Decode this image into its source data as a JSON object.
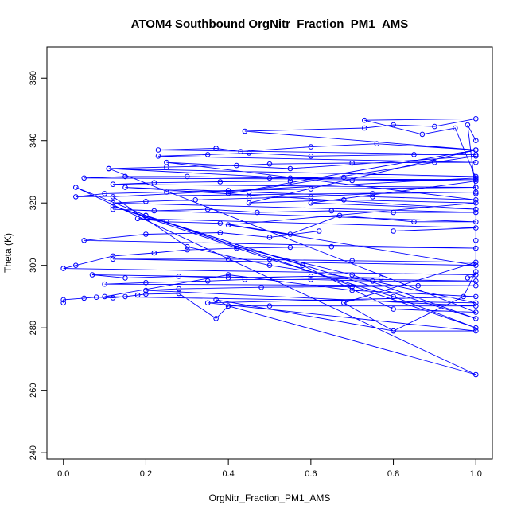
{
  "chart_data": {
    "type": "scatter",
    "title": "ATOM4 Southbound OrgNitr_Fraction_PM1_AMS",
    "xlabel": "OrgNitr_Fraction_PM1_AMS",
    "ylabel": "Theta (K)",
    "xlim": [
      -0.04,
      1.04
    ],
    "ylim": [
      238,
      370
    ],
    "xticks": [
      0.0,
      0.2,
      0.4,
      0.6,
      0.8,
      1.0
    ],
    "xtick_labels": [
      "0.0",
      "0.2",
      "0.4",
      "0.6",
      "0.8",
      "1.0"
    ],
    "yticks": [
      240,
      260,
      280,
      300,
      320,
      340,
      360
    ],
    "ytick_labels": [
      "240",
      "260",
      "280",
      "300",
      "320",
      "340",
      "360"
    ],
    "grid": false,
    "color": "#0000ff",
    "series": [
      {
        "name": "Southbound",
        "connected": true,
        "points": [
          [
            0.0,
            288.0
          ],
          [
            0.0,
            289.0
          ],
          [
            0.05,
            289.5
          ],
          [
            0.08,
            289.8
          ],
          [
            0.12,
            289.6
          ],
          [
            0.15,
            290.0
          ],
          [
            0.18,
            290.5
          ],
          [
            0.2,
            290.8
          ],
          [
            0.28,
            291.0
          ],
          [
            0.37,
            283.0
          ],
          [
            0.4,
            287.0
          ],
          [
            0.5,
            287.0
          ],
          [
            1.0,
            287.0
          ],
          [
            0.2,
            292.0
          ],
          [
            0.28,
            292.5
          ],
          [
            0.48,
            293.0
          ],
          [
            0.7,
            293.2
          ],
          [
            0.86,
            293.5
          ],
          [
            1.0,
            293.5
          ],
          [
            0.1,
            294.0
          ],
          [
            0.2,
            294.5
          ],
          [
            0.35,
            295.0
          ],
          [
            0.44,
            295.5
          ],
          [
            0.6,
            295.5
          ],
          [
            0.75,
            295.0
          ],
          [
            1.0,
            295.0
          ],
          [
            0.07,
            297.0
          ],
          [
            0.15,
            296.0
          ],
          [
            0.28,
            296.5
          ],
          [
            0.4,
            296.0
          ],
          [
            0.6,
            296.5
          ],
          [
            0.77,
            296.0
          ],
          [
            0.98,
            296.0
          ],
          [
            1.0,
            297.0
          ],
          [
            0.0,
            299.0
          ],
          [
            0.03,
            300.0
          ],
          [
            0.12,
            303.0
          ],
          [
            0.22,
            304.0
          ],
          [
            0.3,
            305.0
          ],
          [
            0.42,
            305.5
          ],
          [
            0.55,
            305.8
          ],
          [
            0.65,
            306.0
          ],
          [
            1.0,
            305.5
          ],
          [
            0.05,
            308.0
          ],
          [
            0.2,
            310.0
          ],
          [
            0.38,
            310.5
          ],
          [
            0.5,
            309.0
          ],
          [
            0.62,
            311.0
          ],
          [
            0.8,
            311.0
          ],
          [
            1.0,
            312.0
          ],
          [
            0.18,
            315.0
          ],
          [
            0.25,
            314.0
          ],
          [
            0.38,
            313.5
          ],
          [
            0.55,
            310.0
          ],
          [
            0.67,
            316.0
          ],
          [
            0.85,
            314.0
          ],
          [
            1.0,
            314.0
          ],
          [
            0.12,
            318.0
          ],
          [
            0.22,
            317.5
          ],
          [
            0.35,
            318.0
          ],
          [
            0.47,
            317.0
          ],
          [
            0.65,
            317.5
          ],
          [
            0.8,
            317.0
          ],
          [
            1.0,
            317.0
          ],
          [
            0.12,
            320.0
          ],
          [
            0.2,
            320.5
          ],
          [
            0.32,
            321.0
          ],
          [
            0.45,
            321.5
          ],
          [
            0.6,
            322.0
          ],
          [
            0.75,
            323.0
          ],
          [
            1.0,
            323.5
          ],
          [
            0.03,
            322.0
          ],
          [
            0.1,
            323.0
          ],
          [
            0.25,
            323.5
          ],
          [
            0.4,
            324.0
          ],
          [
            0.6,
            324.5
          ],
          [
            1.0,
            325.0
          ],
          [
            0.12,
            326.0
          ],
          [
            0.22,
            326.5
          ],
          [
            0.38,
            326.8
          ],
          [
            0.55,
            327.0
          ],
          [
            0.7,
            327.2
          ],
          [
            1.0,
            327.5
          ],
          [
            0.05,
            328.0
          ],
          [
            0.15,
            328.5
          ],
          [
            0.3,
            328.5
          ],
          [
            0.5,
            328.0
          ],
          [
            0.68,
            328.2
          ],
          [
            1.0,
            328.5
          ],
          [
            0.11,
            331.0
          ],
          [
            0.25,
            331.5
          ],
          [
            0.42,
            332.0
          ],
          [
            0.5,
            332.5
          ],
          [
            0.7,
            332.8
          ],
          [
            0.9,
            333.0
          ],
          [
            1.0,
            333.0
          ],
          [
            0.23,
            335.0
          ],
          [
            0.35,
            335.5
          ],
          [
            0.45,
            336.0
          ],
          [
            0.6,
            335.0
          ],
          [
            0.85,
            335.5
          ],
          [
            1.0,
            335.5
          ],
          [
            0.23,
            337.0
          ],
          [
            0.37,
            337.5
          ],
          [
            0.43,
            336.5
          ],
          [
            0.6,
            338.0
          ],
          [
            0.76,
            339.0
          ],
          [
            1.0,
            337.0
          ],
          [
            0.44,
            343.0
          ],
          [
            0.73,
            344.0
          ],
          [
            0.8,
            345.0
          ],
          [
            0.9,
            344.5
          ],
          [
            1.0,
            347.0
          ],
          [
            0.73,
            346.5
          ],
          [
            0.87,
            342.0
          ],
          [
            0.95,
            344.0
          ],
          [
            1.0,
            328.0
          ],
          [
            0.12,
            322.0
          ],
          [
            0.3,
            306.0
          ],
          [
            0.5,
            300.0
          ],
          [
            0.75,
            295.0
          ],
          [
            1.0,
            288.0
          ],
          [
            0.1,
            290.0
          ],
          [
            0.4,
            297.0
          ],
          [
            0.7,
            292.0
          ],
          [
            1.0,
            290.0
          ],
          [
            0.35,
            288.0
          ],
          [
            1.0,
            279.0
          ],
          [
            0.8,
            279.0
          ],
          [
            0.37,
            289.0
          ],
          [
            0.4,
            287.0
          ],
          [
            1.0,
            265.0
          ],
          [
            0.03,
            325.0
          ],
          [
            0.2,
            316.0
          ],
          [
            0.42,
            306.0
          ],
          [
            0.7,
            297.0
          ],
          [
            1.0,
            283.0
          ],
          [
            0.12,
            319.0
          ],
          [
            0.5,
            302.0
          ],
          [
            0.8,
            290.0
          ],
          [
            1.0,
            280.0
          ],
          [
            0.2,
            316.0
          ],
          [
            0.58,
            300.0
          ],
          [
            0.8,
            286.0
          ],
          [
            1.0,
            285.0
          ],
          [
            0.11,
            331.0
          ],
          [
            0.55,
            328.0
          ],
          [
            1.0,
            327.0
          ],
          [
            0.6,
            320.0
          ],
          [
            1.0,
            318.0
          ],
          [
            0.15,
            325.0
          ],
          [
            0.45,
            323.5
          ],
          [
            0.75,
            322.0
          ],
          [
            1.0,
            321.0
          ],
          [
            0.25,
            333.0
          ],
          [
            0.55,
            331.0
          ],
          [
            1.0,
            335.0
          ],
          [
            0.4,
            323.0
          ],
          [
            1.0,
            337.0
          ],
          [
            0.45,
            320.0
          ],
          [
            0.68,
            321.0
          ],
          [
            1.0,
            320.0
          ],
          [
            0.4,
            313.0
          ],
          [
            1.0,
            300.0
          ],
          [
            0.12,
            302.0
          ],
          [
            0.4,
            302.0
          ],
          [
            0.7,
            301.5
          ],
          [
            1.0,
            301.0
          ],
          [
            0.68,
            288.0
          ],
          [
            0.8,
            279.0
          ],
          [
            0.97,
            290.0
          ],
          [
            1.0,
            298.0
          ],
          [
            1.0,
            308.0
          ],
          [
            1.0,
            323.0
          ],
          [
            0.98,
            345.0
          ],
          [
            1.0,
            340.0
          ]
        ]
      }
    ]
  }
}
